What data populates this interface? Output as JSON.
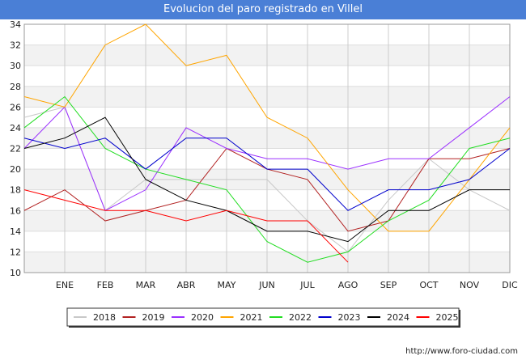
{
  "chart_data": {
    "type": "line",
    "title": "Evolucion del paro registrado en Villel",
    "xlabel": "",
    "ylabel": "",
    "x": [
      "",
      "ENE",
      "FEB",
      "MAR",
      "ABR",
      "MAY",
      "JUN",
      "JUL",
      "AGO",
      "SEP",
      "OCT",
      "NOV",
      "DIC"
    ],
    "ylim": [
      10,
      34
    ],
    "yticks": [
      10,
      12,
      14,
      16,
      18,
      20,
      22,
      24,
      26,
      28,
      30,
      32,
      34
    ],
    "grid": true,
    "legend_position": "bottom",
    "series": [
      {
        "name": "2018",
        "color": "#c8c8c8",
        "values": [
          25,
          26,
          16,
          19,
          19,
          19,
          19,
          15,
          12,
          17,
          21,
          18,
          16
        ]
      },
      {
        "name": "2019",
        "color": "#b22222",
        "values": [
          16,
          18,
          15,
          16,
          17,
          22,
          20,
          19,
          14,
          15,
          21,
          21,
          22
        ]
      },
      {
        "name": "2020",
        "color": "#9b30ff",
        "values": [
          22,
          26,
          16,
          18,
          24,
          22,
          21,
          21,
          20,
          21,
          21,
          24,
          27
        ]
      },
      {
        "name": "2021",
        "color": "#ffa500",
        "values": [
          27,
          26,
          32,
          34,
          30,
          31,
          25,
          23,
          18,
          14,
          14,
          19,
          24
        ]
      },
      {
        "name": "2022",
        "color": "#22dd22",
        "values": [
          24,
          27,
          22,
          20,
          19,
          18,
          13,
          11,
          12,
          15,
          17,
          22,
          23
        ]
      },
      {
        "name": "2023",
        "color": "#0000cc",
        "values": [
          23,
          22,
          23,
          20,
          23,
          23,
          20,
          20,
          16,
          18,
          18,
          19,
          22
        ]
      },
      {
        "name": "2024",
        "color": "#000000",
        "values": [
          22,
          23,
          25,
          19,
          17,
          16,
          14,
          14,
          13,
          16,
          16,
          18,
          18
        ]
      },
      {
        "name": "2025",
        "color": "#ff0000",
        "values": [
          18,
          17,
          16,
          16,
          15,
          16,
          15,
          15,
          11,
          null,
          null,
          null,
          null
        ]
      }
    ]
  },
  "footer": {
    "source": "http://www.foro-ciudad.com"
  }
}
